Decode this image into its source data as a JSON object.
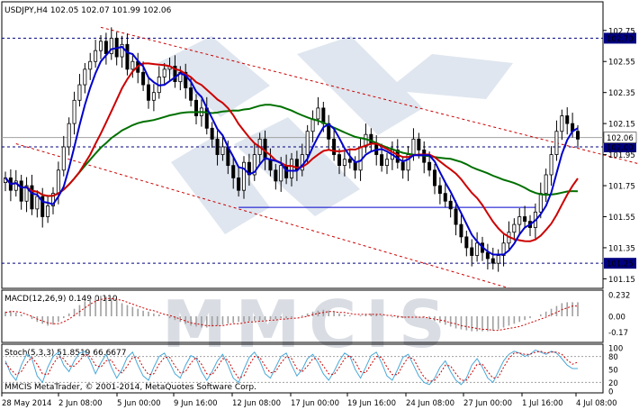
{
  "chart_data": [
    {
      "type": "line",
      "title": "USDJPY,H4  102.05 102.07 101.99 102.06",
      "symbol": "USDJPY",
      "timeframe": "H4",
      "ohlc_header": {
        "open": 102.05,
        "high": 102.07,
        "low": 101.99,
        "close": 102.06
      },
      "ylim": [
        101.1,
        102.83
      ],
      "y_ticks": [
        "102.75",
        "102.55",
        "102.35",
        "102.15",
        "101.95",
        "101.75",
        "101.55",
        "101.35",
        "101.15"
      ],
      "x_ticks": [
        "28 May 2014",
        "2 Jun 08:00",
        "5 Jun 00:00",
        "9 Jun 16:00",
        "12 Jun 08:00",
        "17 Jun 00:00",
        "19 Jun 16:00",
        "24 Jun 08:00",
        "27 Jun 00:00",
        "1 Jul 16:00",
        "4 Jul 08:00"
      ],
      "horizontal_levels": [
        {
          "label": "102.70",
          "value": 102.7,
          "color": "#000080",
          "style": "dashed"
        },
        {
          "label": "102.00",
          "value": 102.0,
          "color": "#000080",
          "style": "dashed"
        },
        {
          "label": "101.25",
          "value": 101.25,
          "color": "#000080",
          "style": "dashed"
        }
      ],
      "current_price": {
        "label": "102.06",
        "value": 102.06,
        "color": "#a0a0a0"
      },
      "support_segment": {
        "value": 101.61,
        "from_index": 44,
        "to_index": 100,
        "color": "#0000cc"
      },
      "channel": {
        "color": "#cc0000",
        "upper": [
          {
            "index": 18,
            "value": 102.77
          },
          {
            "index": 130,
            "value": 101.8
          }
        ],
        "lower": [
          {
            "index": 2,
            "value": 102.02
          },
          {
            "index": 95,
            "value": 101.09
          }
        ]
      },
      "price_series": [
        101.8,
        101.72,
        101.78,
        101.65,
        101.75,
        101.6,
        101.68,
        101.55,
        101.62,
        101.7,
        101.85,
        102.0,
        102.15,
        102.3,
        102.4,
        102.5,
        102.55,
        102.62,
        102.68,
        102.6,
        102.7,
        102.58,
        102.66,
        102.5,
        102.55,
        102.48,
        102.4,
        102.3,
        102.35,
        102.45,
        102.5,
        102.52,
        102.42,
        102.48,
        102.38,
        102.3,
        102.2,
        102.25,
        102.12,
        102.05,
        101.95,
        102.0,
        101.88,
        101.8,
        101.72,
        101.9,
        101.82,
        101.95,
        102.05,
        101.92,
        101.85,
        101.78,
        101.88,
        101.8,
        101.92,
        101.85,
        101.95,
        102.1,
        102.18,
        102.25,
        102.15,
        102.05,
        101.95,
        101.88,
        101.92,
        101.9,
        101.85,
        102.0,
        102.08,
        102.02,
        101.95,
        101.88,
        101.92,
        101.98,
        101.9,
        101.85,
        101.95,
        102.05,
        101.98,
        101.9,
        101.85,
        101.75,
        101.7,
        101.65,
        101.6,
        101.5,
        101.42,
        101.35,
        101.3,
        101.38,
        101.32,
        101.28,
        101.25,
        101.3,
        101.38,
        101.45,
        101.5,
        101.55,
        101.52,
        101.48,
        101.58,
        101.7,
        101.82,
        101.95,
        102.1,
        102.2,
        102.15,
        102.1,
        102.05
      ],
      "sma_fast": {
        "name": "",
        "color": "#0000cc"
      },
      "sma_mid": {
        "name": "",
        "color": "#cc0000"
      },
      "sma_slow": {
        "name": "",
        "color": "#007000"
      }
    },
    {
      "type": "line",
      "title": "MACD(12,26,9) 0.149 0.110",
      "ylim": [
        -0.26,
        0.26
      ],
      "y_ticks": [
        "0.232",
        "0.00",
        "-0.17"
      ],
      "histogram": [
        0.05,
        0.06,
        0.04,
        0.02,
        0.0,
        -0.03,
        -0.06,
        -0.08,
        -0.1,
        -0.09,
        -0.06,
        -0.02,
        0.03,
        0.08,
        0.12,
        0.16,
        0.19,
        0.21,
        0.22,
        0.21,
        0.19,
        0.17,
        0.14,
        0.12,
        0.1,
        0.08,
        0.06,
        0.05,
        0.03,
        0.02,
        0.0,
        -0.02,
        -0.04,
        -0.06,
        -0.08,
        -0.1,
        -0.11,
        -0.12,
        -0.12,
        -0.11,
        -0.1,
        -0.09,
        -0.08,
        -0.07,
        -0.06,
        -0.06,
        -0.05,
        -0.05,
        -0.04,
        -0.04,
        -0.03,
        -0.03,
        -0.02,
        -0.02,
        -0.01,
        0.0,
        0.01,
        0.03,
        0.05,
        0.06,
        0.07,
        0.06,
        0.05,
        0.03,
        0.02,
        0.01,
        0.0,
        0.01,
        0.02,
        0.03,
        0.02,
        0.01,
        0.0,
        -0.01,
        -0.02,
        -0.02,
        -0.01,
        0.0,
        0.0,
        -0.01,
        -0.03,
        -0.05,
        -0.07,
        -0.09,
        -0.11,
        -0.13,
        -0.14,
        -0.15,
        -0.16,
        -0.16,
        -0.16,
        -0.16,
        -0.15,
        -0.14,
        -0.12,
        -0.1,
        -0.08,
        -0.06,
        -0.04,
        -0.02,
        0.0,
        0.02,
        0.05,
        0.08,
        0.11,
        0.14,
        0.15,
        0.15,
        0.15
      ],
      "signal": [
        0.04,
        0.05,
        0.05,
        0.04,
        0.02,
        0.0,
        -0.03,
        -0.05,
        -0.07,
        -0.08,
        -0.08,
        -0.06,
        -0.03,
        0.01,
        0.05,
        0.09,
        0.13,
        0.16,
        0.18,
        0.19,
        0.19,
        0.18,
        0.17,
        0.15,
        0.13,
        0.11,
        0.09,
        0.07,
        0.06,
        0.04,
        0.02,
        0.01,
        -0.01,
        -0.03,
        -0.05,
        -0.07,
        -0.08,
        -0.09,
        -0.1,
        -0.1,
        -0.1,
        -0.1,
        -0.09,
        -0.08,
        -0.08,
        -0.07,
        -0.06,
        -0.06,
        -0.05,
        -0.05,
        -0.04,
        -0.04,
        -0.03,
        -0.03,
        -0.02,
        -0.02,
        -0.01,
        0.0,
        0.02,
        0.03,
        0.04,
        0.05,
        0.05,
        0.04,
        0.04,
        0.03,
        0.02,
        0.02,
        0.02,
        0.02,
        0.02,
        0.02,
        0.01,
        0.01,
        0.0,
        -0.01,
        -0.01,
        -0.01,
        -0.01,
        -0.01,
        -0.02,
        -0.03,
        -0.04,
        -0.05,
        -0.07,
        -0.08,
        -0.1,
        -0.11,
        -0.12,
        -0.13,
        -0.14,
        -0.14,
        -0.15,
        -0.15,
        -0.14,
        -0.13,
        -0.12,
        -0.11,
        -0.09,
        -0.07,
        -0.05,
        -0.03,
        -0.01,
        0.02,
        0.04,
        0.07,
        0.09,
        0.11,
        0.11
      ],
      "hist_color": "#a0a0a0",
      "signal_color": "#cc0000"
    },
    {
      "type": "line",
      "title": "Stoch(5,3,3) 51.8519 66.6677",
      "ylim": [
        0,
        100
      ],
      "y_ticks": [
        "100",
        "80",
        "50",
        "20",
        "0"
      ],
      "levels": [
        80,
        20
      ],
      "main": [
        70,
        40,
        25,
        60,
        85,
        75,
        35,
        20,
        55,
        80,
        90,
        60,
        45,
        70,
        88,
        92,
        70,
        40,
        65,
        85,
        55,
        30,
        50,
        78,
        90,
        60,
        35,
        25,
        55,
        80,
        88,
        65,
        40,
        30,
        60,
        82,
        75,
        45,
        25,
        45,
        70,
        85,
        60,
        30,
        20,
        50,
        78,
        90,
        70,
        40,
        30,
        55,
        80,
        88,
        60,
        35,
        50,
        75,
        85,
        65,
        40,
        25,
        45,
        70,
        88,
        80,
        50,
        30,
        55,
        82,
        90,
        65,
        35,
        25,
        50,
        78,
        85,
        60,
        35,
        20,
        15,
        30,
        55,
        70,
        45,
        25,
        15,
        30,
        60,
        75,
        55,
        30,
        20,
        45,
        70,
        85,
        92,
        88,
        80,
        85,
        95,
        90,
        85,
        92,
        88,
        75,
        60,
        52,
        52
      ],
      "signal": [
        65,
        50,
        38,
        45,
        65,
        78,
        62,
        40,
        38,
        62,
        80,
        75,
        58,
        58,
        70,
        85,
        80,
        60,
        55,
        70,
        72,
        50,
        42,
        58,
        78,
        78,
        55,
        38,
        40,
        62,
        78,
        78,
        58,
        42,
        45,
        65,
        78,
        62,
        40,
        38,
        55,
        75,
        72,
        48,
        30,
        35,
        60,
        80,
        78,
        58,
        42,
        45,
        65,
        80,
        75,
        52,
        45,
        58,
        75,
        75,
        58,
        40,
        38,
        55,
        75,
        82,
        68,
        45,
        42,
        62,
        80,
        78,
        55,
        38,
        38,
        60,
        78,
        75,
        52,
        32,
        22,
        25,
        40,
        60,
        58,
        40,
        25,
        25,
        42,
        62,
        62,
        45,
        30,
        32,
        55,
        75,
        88,
        88,
        85,
        85,
        90,
        92,
        88,
        90,
        90,
        85,
        72,
        62,
        67
      ],
      "main_color": "#4aa8d8",
      "signal_color": "#cc0000"
    }
  ],
  "footer": {
    "credit": "MMCIS MetaTrader, © 2001-2014, MetaQuotes Software Corp."
  },
  "watermark": {
    "brand": "MMCIS"
  }
}
